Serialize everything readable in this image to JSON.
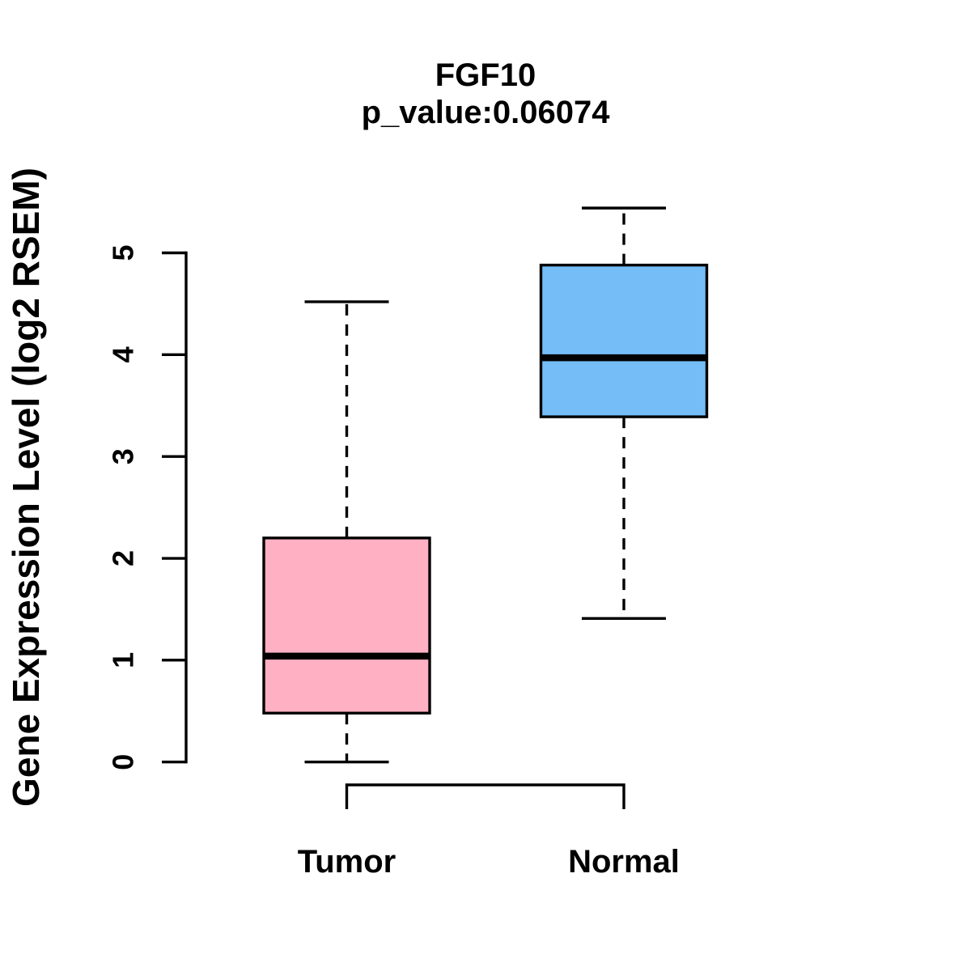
{
  "title": "FGF10",
  "subtitle": "p_value:0.06074",
  "colors": {
    "tumor_fill": "#FFB0C3",
    "normal_fill": "#74BDF7",
    "stroke": "#000000",
    "background": "#FFFFFF"
  },
  "chart_data": {
    "type": "boxplot",
    "title": "FGF10",
    "subtitle": "p_value:0.06074",
    "ylabel": "Gene Expression Level (log2 RSEM)",
    "xlabel": "",
    "categories": [
      "Tumor",
      "Normal"
    ],
    "yticks": [
      0,
      1,
      2,
      3,
      4,
      5
    ],
    "ylim": [
      0,
      5.44
    ],
    "grid": false,
    "legend": "none",
    "whisker_style": "dashed",
    "series": [
      {
        "name": "Tumor",
        "min": 0.0,
        "q1": 0.48,
        "median": 1.04,
        "q3": 2.2,
        "max": 4.52,
        "fill": "#FFB0C3"
      },
      {
        "name": "Normal",
        "min": 1.41,
        "q1": 3.39,
        "median": 3.97,
        "q3": 4.88,
        "max": 5.44,
        "fill": "#74BDF7"
      }
    ]
  }
}
